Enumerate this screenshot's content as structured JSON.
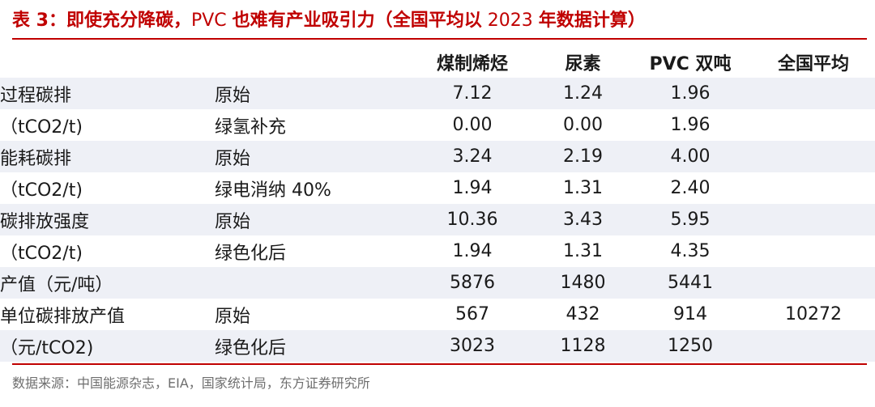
{
  "title": {
    "prefix": "表 3：",
    "main": "即使充分降碳，",
    "pvc": "PVC ",
    "rest": "也难有产业吸引力",
    "paren_open": "（",
    "basis": "全国平均以",
    "year": " 2023 ",
    "basis_end": "年数据计算",
    "paren_close": "）"
  },
  "table": {
    "headers": [
      "",
      "",
      "煤制烯烃",
      "尿素",
      "PVC 双吨",
      "全国平均"
    ],
    "rows": [
      [
        "过程碳排",
        "原始",
        "7.12",
        "1.24",
        "1.96",
        ""
      ],
      [
        "（tCO2/t)",
        "绿氢补充",
        "0.00",
        "0.00",
        "1.96",
        ""
      ],
      [
        "能耗碳排",
        "原始",
        "3.24",
        "2.19",
        "4.00",
        ""
      ],
      [
        "（tCO2/t)",
        "绿电消纳 40%",
        "1.94",
        "1.31",
        "2.40",
        ""
      ],
      [
        "碳排放强度",
        "原始",
        "10.36",
        "3.43",
        "5.95",
        ""
      ],
      [
        "（tCO2/t)",
        "绿色化后",
        "1.94",
        "1.31",
        "4.35",
        ""
      ],
      [
        "产值（元/吨）",
        "",
        "5876",
        "1480",
        "5441",
        ""
      ],
      [
        "单位碳排放产值",
        "原始",
        "567",
        "432",
        "914",
        "10272"
      ],
      [
        "（元/tCO2)",
        "绿色化后",
        "3023",
        "1128",
        "1250",
        ""
      ]
    ]
  },
  "source": "数据来源：中国能源杂志，EIA，国家统计局，东方证券研究所",
  "colors": {
    "accent": "#c00000",
    "row_shade": "#eef0f6",
    "source_text": "#6e6e6e"
  }
}
